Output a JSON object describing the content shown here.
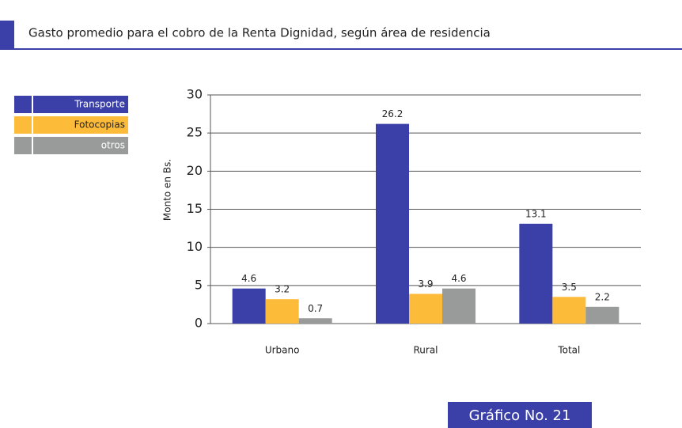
{
  "header": {
    "title": "Gasto promedio para el cobro de la Renta Dignidad, según área de residencia"
  },
  "chart_data": {
    "type": "bar",
    "y_label": "Monto en Bs.",
    "categories": [
      "Urbano",
      "Rural",
      "Total"
    ],
    "series": [
      {
        "name": "Transporte",
        "color": "#3b3fa8",
        "values": [
          4.6,
          26.2,
          13.1
        ]
      },
      {
        "name": "Fotocopias",
        "color": "#fdbb3a",
        "values": [
          3.2,
          3.9,
          3.5
        ]
      },
      {
        "name": "otros",
        "color": "#999a9a",
        "values": [
          0.7,
          4.6,
          2.2
        ]
      }
    ],
    "ylim": [
      0,
      30
    ],
    "yticks": [
      0,
      5,
      10,
      15,
      20,
      25,
      30
    ],
    "grid": true
  },
  "footer": {
    "label": "Gráfico No. 21"
  }
}
